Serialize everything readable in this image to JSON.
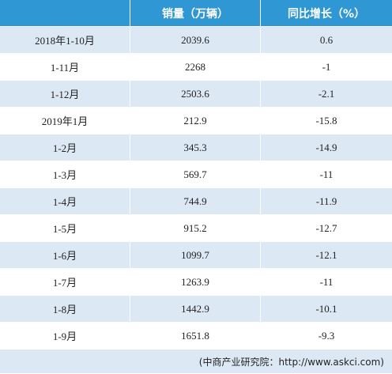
{
  "table": {
    "columns": [
      "销量（万辆）",
      "同比增长（%）"
    ],
    "rows": [
      [
        "2018年1-10月",
        2039.6,
        0.6
      ],
      [
        "1-11月",
        2268,
        -1
      ],
      [
        "1-12月",
        2503.6,
        -2.1
      ],
      [
        "2019年1月",
        212.9,
        -15.8
      ],
      [
        "1-2月",
        345.3,
        -14.9
      ],
      [
        "1-3月",
        569.7,
        -11
      ],
      [
        "1-4月",
        744.9,
        -11.9
      ],
      [
        "1-5月",
        915.2,
        -12.7
      ],
      [
        "1-6月",
        1099.7,
        -12.1
      ],
      [
        "1-7月",
        1263.9,
        -11
      ],
      [
        "1-8月",
        1442.9,
        -10.1
      ],
      [
        "1-9月",
        1651.8,
        -9.3
      ]
    ],
    "source": "(中商产业研究院：http://www.askci.com)"
  }
}
